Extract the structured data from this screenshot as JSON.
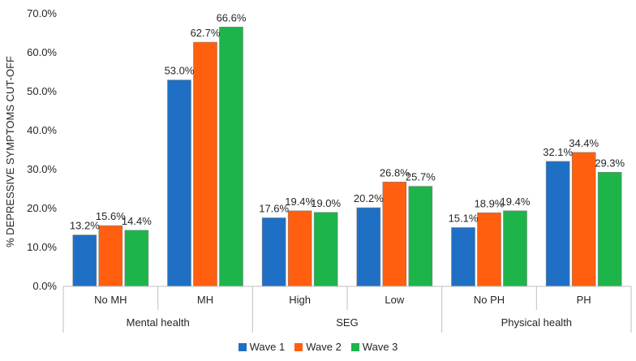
{
  "chart_data": {
    "type": "bar",
    "ylabel": "% DEPRESSIVE SYMPTOMS CUT-OFF",
    "ylim": [
      0,
      70
    ],
    "yticks": [
      "0.0%",
      "10.0%",
      "20.0%",
      "30.0%",
      "40.0%",
      "50.0%",
      "60.0%",
      "70.0%"
    ],
    "categories": [
      "No MH",
      "MH",
      "High",
      "Low",
      "No PH",
      "PH"
    ],
    "groups": [
      {
        "label": "Mental health",
        "categories": [
          "No MH",
          "MH"
        ]
      },
      {
        "label": "SEG",
        "categories": [
          "High",
          "Low"
        ]
      },
      {
        "label": "Physical health",
        "categories": [
          "No PH",
          "PH"
        ]
      }
    ],
    "series": [
      {
        "name": "Wave 1",
        "color": "#1f6fc5",
        "values": [
          13.2,
          53.0,
          17.6,
          20.2,
          15.1,
          32.1
        ],
        "labels": [
          "13.2%",
          "53.0%",
          "17.6%",
          "20.2%",
          "15.1%",
          "32.1%"
        ]
      },
      {
        "name": "Wave 2",
        "color": "#ff5f0f",
        "values": [
          15.6,
          62.7,
          19.4,
          26.8,
          18.9,
          34.4
        ],
        "labels": [
          "15.6%",
          "62.7%",
          "19.4%",
          "26.8%",
          "18.9%",
          "34.4%"
        ]
      },
      {
        "name": "Wave 3",
        "color": "#1db54a",
        "values": [
          14.4,
          66.6,
          19.0,
          25.7,
          19.4,
          29.3
        ],
        "labels": [
          "14.4%",
          "66.6%",
          "19.0%",
          "25.7%",
          "19.4%",
          "29.3%"
        ]
      }
    ],
    "legend": "bottom",
    "grid": false
  }
}
